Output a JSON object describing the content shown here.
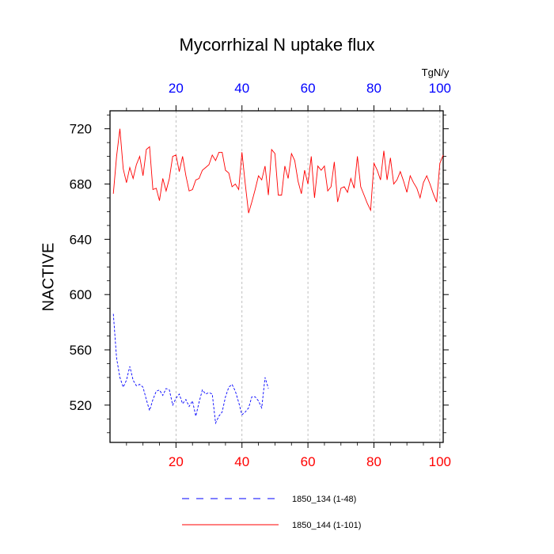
{
  "chart_data": {
    "type": "line",
    "title": "Mycorrhizal N uptake flux",
    "ylabel": "NACTIVE",
    "units": "TgN/y",
    "xlim": [
      0,
      101
    ],
    "ylim": [
      493,
      733
    ],
    "yticks": [
      520,
      560,
      600,
      640,
      680,
      720
    ],
    "xticks_bottom": [
      20,
      40,
      60,
      80,
      100
    ],
    "xticks_top": [
      20,
      40,
      60,
      80,
      100
    ],
    "xtick_color_bottom": "#ff0000",
    "xtick_color_top": "#0000ff",
    "grid": "vertical dashed",
    "legend_position": "bottom",
    "series": [
      {
        "name": "1850_134 (1-48)",
        "color": "#0000ff",
        "style": "dashed",
        "x": [
          1,
          2,
          3,
          4,
          5,
          6,
          7,
          8,
          9,
          10,
          11,
          12,
          13,
          14,
          15,
          16,
          17,
          18,
          19,
          20,
          21,
          22,
          23,
          24,
          25,
          26,
          27,
          28,
          29,
          30,
          31,
          32,
          33,
          34,
          35,
          36,
          37,
          38,
          39,
          40,
          41,
          42,
          43,
          44,
          45,
          46,
          47,
          48
        ],
        "values": [
          586,
          554,
          540,
          533,
          538,
          548,
          538,
          534,
          535,
          533,
          524,
          516,
          524,
          530,
          531,
          527,
          532,
          531,
          520,
          525,
          528,
          521,
          524,
          519,
          523,
          512,
          522,
          531,
          528,
          529,
          528,
          507,
          512,
          515,
          526,
          533,
          535,
          530,
          522,
          513,
          515,
          518,
          526,
          526,
          523,
          518,
          540,
          532
        ]
      },
      {
        "name": "1850_144 (1-101)",
        "color": "#ff0000",
        "style": "solid",
        "x": [
          1,
          2,
          3,
          4,
          5,
          6,
          7,
          8,
          9,
          10,
          11,
          12,
          13,
          14,
          15,
          16,
          17,
          18,
          19,
          20,
          21,
          22,
          23,
          24,
          25,
          26,
          27,
          28,
          29,
          30,
          31,
          32,
          33,
          34,
          35,
          36,
          37,
          38,
          39,
          40,
          41,
          42,
          43,
          44,
          45,
          46,
          47,
          48,
          49,
          50,
          51,
          52,
          53,
          54,
          55,
          56,
          57,
          58,
          59,
          60,
          61,
          62,
          63,
          64,
          65,
          66,
          67,
          68,
          69,
          70,
          71,
          72,
          73,
          74,
          75,
          76,
          77,
          78,
          79,
          80,
          81,
          82,
          83,
          84,
          85,
          86,
          87,
          88,
          89,
          90,
          91,
          92,
          93,
          94,
          95,
          96,
          97,
          98,
          99,
          100,
          101
        ],
        "values": [
          673,
          700,
          720,
          691,
          681,
          692,
          684,
          694,
          700,
          686,
          705,
          707,
          676,
          677,
          668,
          684,
          675,
          684,
          700,
          701,
          689,
          700,
          686,
          675,
          676,
          683,
          684,
          690,
          692,
          694,
          701,
          697,
          703,
          703,
          690,
          688,
          678,
          680,
          676,
          703,
          680,
          659,
          667,
          676,
          686,
          683,
          693,
          672,
          705,
          702,
          672,
          672,
          693,
          684,
          702,
          697,
          682,
          673,
          690,
          680,
          700,
          670,
          693,
          690,
          693,
          675,
          678,
          696,
          667,
          677,
          678,
          674,
          684,
          677,
          700,
          678,
          672,
          666,
          661,
          695,
          690,
          683,
          704,
          683,
          699,
          680,
          683,
          689,
          682,
          674,
          686,
          681,
          677,
          670,
          681,
          686,
          680,
          673,
          667,
          695,
          701
        ]
      }
    ]
  }
}
